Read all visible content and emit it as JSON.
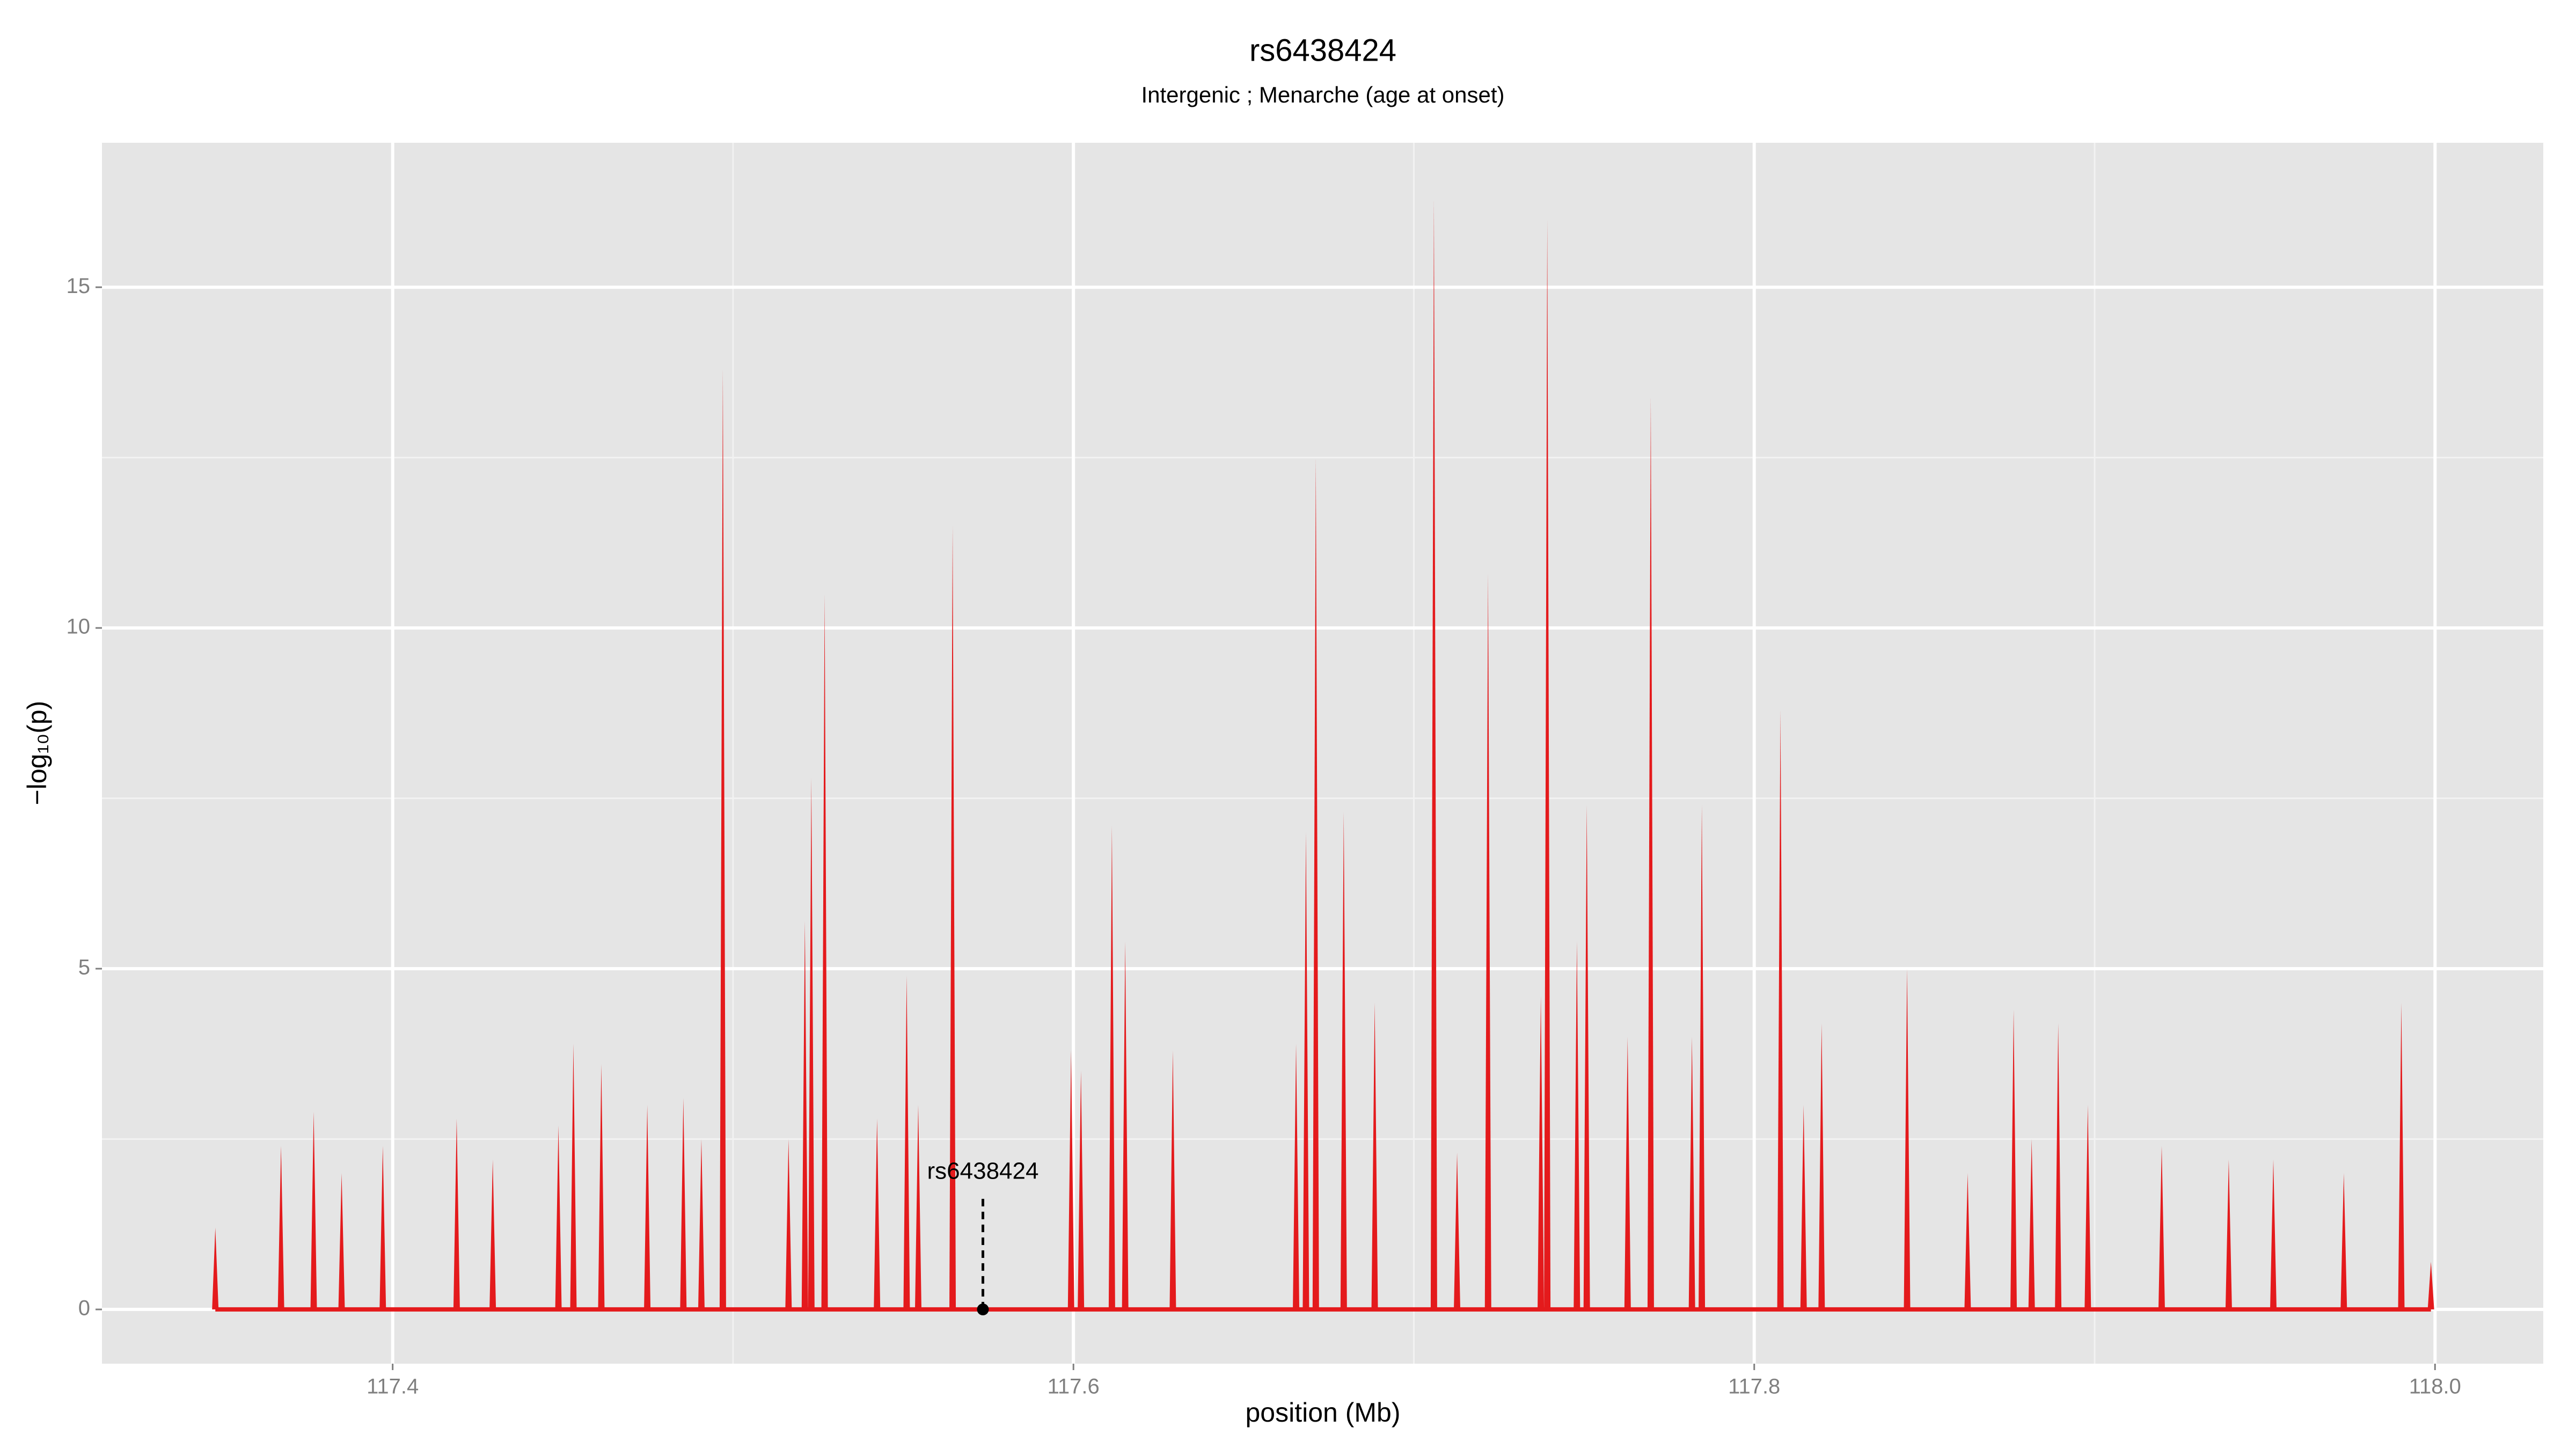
{
  "chart_data": {
    "type": "spike",
    "title": "rs6438424",
    "subtitle": "Intergenic ; Menarche (age at onset)",
    "x_label": "position (Mb)",
    "y_label": "−log₁₀(p)",
    "xlim": [
      117.3146,
      118.0318
    ],
    "ylim": [
      -0.796,
      17.12
    ],
    "xticks": [
      117.4,
      117.6,
      117.8,
      {
        "value": 118,
        "label": "118.0"
      }
    ],
    "yticks": [
      0,
      5,
      10,
      15
    ],
    "x_minor_grid": [
      117.5,
      117.7,
      117.9
    ],
    "y_minor_grid": [
      2.5,
      7.5,
      12.5
    ],
    "grid": true,
    "color": "#e41a1c",
    "x": [
      117.3479,
      117.3672,
      117.3768,
      117.385,
      117.3971,
      117.4188,
      117.4294,
      117.4487,
      117.4531,
      117.4613,
      117.4748,
      117.4854,
      117.4907,
      117.497,
      117.5163,
      117.5211,
      117.523,
      117.5269,
      117.5423,
      117.551,
      117.5544,
      117.5645,
      117.5993,
      117.6022,
      117.6113,
      117.6152,
      117.6292,
      117.6654,
      117.6683,
      117.6712,
      117.6794,
      117.6885,
      117.7059,
      117.7127,
      117.7218,
      117.7373,
      117.7392,
      117.7479,
      117.7508,
      117.7628,
      117.7696,
      117.7817,
      117.7846,
      117.8077,
      117.8145,
      117.8198,
      117.8449,
      117.8627,
      117.8762,
      117.8815,
      117.8893,
      117.898,
      117.9197,
      117.9394,
      117.9525,
      117.9732,
      117.9901,
      117.9988
    ],
    "values": [
      1.2,
      2.4,
      2.9,
      2.0,
      2.4,
      2.8,
      2.2,
      2.7,
      3.9,
      3.6,
      3.0,
      3.1,
      2.5,
      13.8,
      2.5,
      5.7,
      7.8,
      10.5,
      2.8,
      4.9,
      3.0,
      11.5,
      3.8,
      3.5,
      7.1,
      5.4,
      3.8,
      3.9,
      7.0,
      12.5,
      7.3,
      4.5,
      16.3,
      2.3,
      10.8,
      4.6,
      16.0,
      5.4,
      7.4,
      4.0,
      13.4,
      4.0,
      7.4,
      8.8,
      3.0,
      4.2,
      5.0,
      2.0,
      4.4,
      2.5,
      4.2,
      3.0,
      2.4,
      2.2,
      2.2,
      2.0,
      4.5,
      0.7
    ],
    "annotation": {
      "text": "rs6438424",
      "x": 117.5734,
      "y": 0
    }
  }
}
